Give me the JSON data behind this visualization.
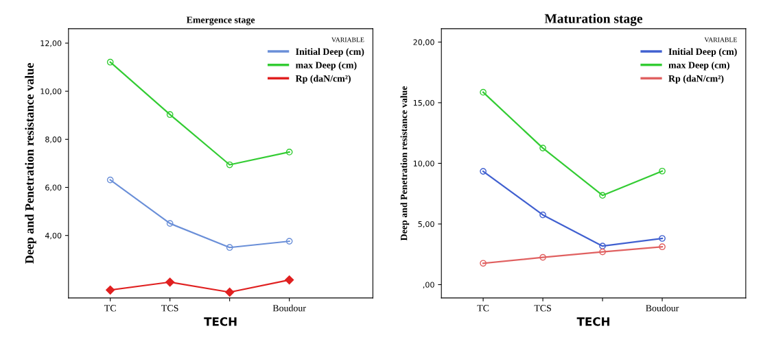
{
  "chart_data": [
    {
      "type": "line",
      "title": "Emergence stage",
      "xlabel": "TECH",
      "ylabel": "Deep and Penetration resistance value",
      "legend_title": "VARIABLE",
      "legend": "top right",
      "grid": false,
      "categories": [
        "TC",
        "TCS",
        null,
        "Boudour"
      ],
      "ylim": [
        1.4,
        12.6
      ],
      "yticks": [
        {
          "value": 4,
          "label": "4,00"
        },
        {
          "value": 6,
          "label": "6,00"
        },
        {
          "value": 8,
          "label": "8,00"
        },
        {
          "value": 10,
          "label": "10,00"
        },
        {
          "value": 12,
          "label": "12,00"
        }
      ],
      "series": [
        {
          "name": "Initial Deep (cm)",
          "color": "#6a8fd8",
          "marker": "circle",
          "values": [
            6.31,
            4.5,
            3.5,
            3.76
          ]
        },
        {
          "name": "max Deep (cm)",
          "color": "#33cc33",
          "marker": "circle",
          "values": [
            11.21,
            9.03,
            6.94,
            7.47
          ]
        },
        {
          "name": "Rp (daN/cm²)",
          "color": "#e02020",
          "marker": "diamond",
          "values": [
            1.73,
            2.06,
            1.64,
            2.15
          ]
        }
      ]
    },
    {
      "type": "line",
      "title": "Maturation stage",
      "xlabel": "TECH",
      "ylabel": "Deep and Penetration resistance value",
      "legend_title": "VARIABLE",
      "legend": "top right",
      "grid": false,
      "categories": [
        "TC",
        "TCS",
        null,
        "Boudour"
      ],
      "ylim": [
        -1.1,
        21.1
      ],
      "yticks": [
        {
          "value": 0,
          "label": ",00"
        },
        {
          "value": 5,
          "label": "5,00"
        },
        {
          "value": 10,
          "label": "10,00"
        },
        {
          "value": 15,
          "label": "15,00"
        },
        {
          "value": 20,
          "label": "20,00"
        }
      ],
      "series": [
        {
          "name": "Initial Deep (cm)",
          "color": "#4060d0",
          "marker": "circle",
          "values": [
            9.34,
            5.75,
            3.18,
            3.81
          ]
        },
        {
          "name": "max Deep (cm)",
          "color": "#33cc33",
          "marker": "circle",
          "values": [
            15.86,
            11.26,
            7.36,
            9.36
          ]
        },
        {
          "name": "Rp (daN/cm²)",
          "color": "#e06060",
          "marker": "circle",
          "values": [
            1.76,
            2.25,
            2.7,
            3.12
          ]
        }
      ]
    }
  ]
}
